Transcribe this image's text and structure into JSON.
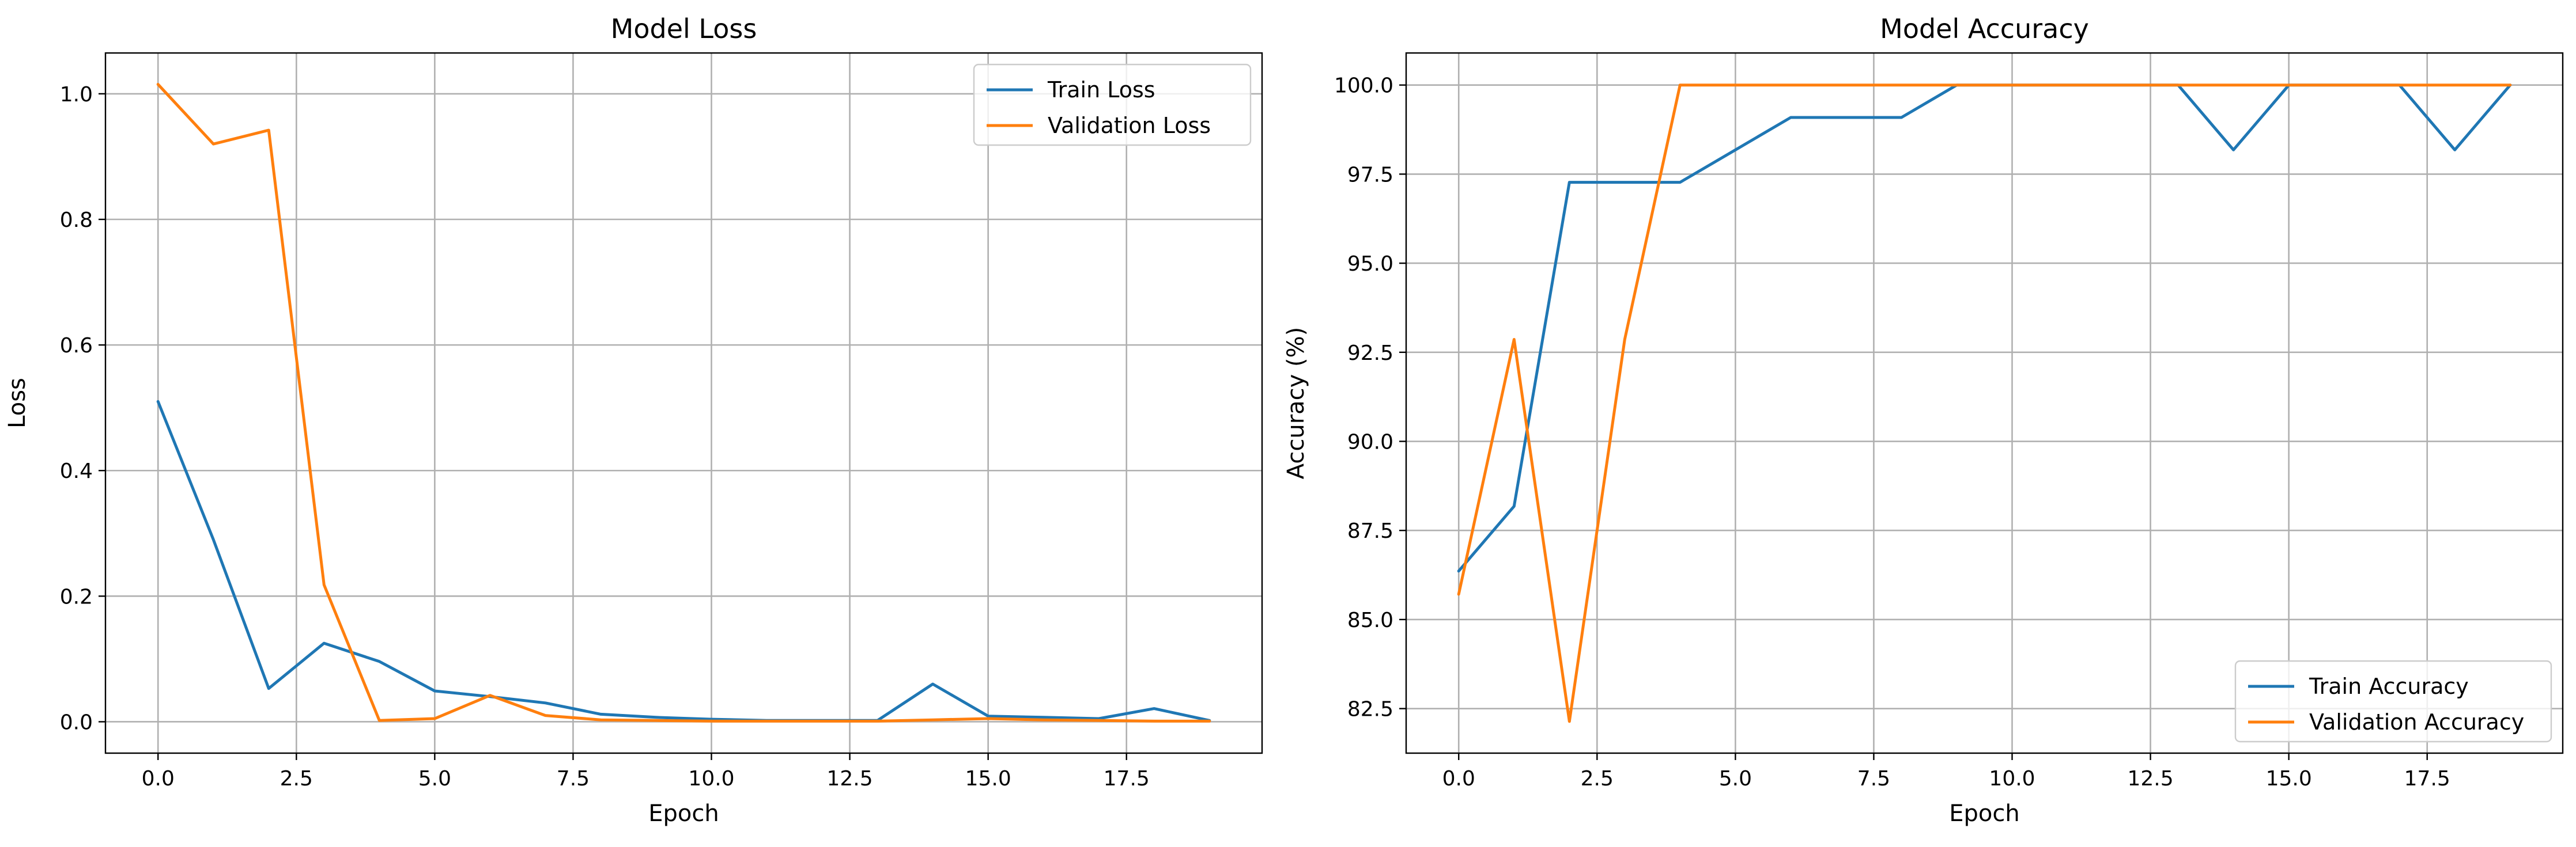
{
  "chart_data": [
    {
      "type": "line",
      "title": "Model Loss",
      "xlabel": "Epoch",
      "ylabel": "Loss",
      "xlim": [
        -0.95,
        19.95
      ],
      "ylim": [
        -0.05,
        1.065
      ],
      "xticks": [
        0.0,
        2.5,
        5.0,
        7.5,
        10.0,
        12.5,
        15.0,
        17.5
      ],
      "xtick_labels": [
        "0.0",
        "2.5",
        "5.0",
        "7.5",
        "10.0",
        "12.5",
        "15.0",
        "17.5"
      ],
      "yticks": [
        0.0,
        0.2,
        0.4,
        0.6,
        0.8,
        1.0
      ],
      "ytick_labels": [
        "0.0",
        "0.2",
        "0.4",
        "0.6",
        "0.8",
        "1.0"
      ],
      "grid": true,
      "legend": "upper-right",
      "x": [
        0,
        1,
        2,
        3,
        4,
        5,
        6,
        7,
        8,
        9,
        10,
        11,
        12,
        13,
        14,
        15,
        16,
        17,
        18,
        19
      ],
      "series": [
        {
          "name": "Train Loss",
          "color": "#1f77b4",
          "values": [
            0.51,
            0.29,
            0.053,
            0.125,
            0.096,
            0.049,
            0.04,
            0.03,
            0.012,
            0.007,
            0.004,
            0.002,
            0.002,
            0.002,
            0.06,
            0.009,
            0.007,
            0.005,
            0.021,
            0.002
          ]
        },
        {
          "name": "Validation Loss",
          "color": "#ff7f0e",
          "values": [
            1.015,
            0.92,
            0.942,
            0.218,
            0.002,
            0.005,
            0.042,
            0.01,
            0.003,
            0.002,
            0.001,
            0.001,
            0.001,
            0.001,
            0.003,
            0.005,
            0.003,
            0.002,
            0.001,
            0.001
          ]
        }
      ]
    },
    {
      "type": "line",
      "title": "Model Accuracy",
      "xlabel": "Epoch",
      "ylabel": "Accuracy (%)",
      "xlim": [
        -0.95,
        19.95
      ],
      "ylim": [
        81.25,
        100.9
      ],
      "xticks": [
        0.0,
        2.5,
        5.0,
        7.5,
        10.0,
        12.5,
        15.0,
        17.5
      ],
      "xtick_labels": [
        "0.0",
        "2.5",
        "5.0",
        "7.5",
        "10.0",
        "12.5",
        "15.0",
        "17.5"
      ],
      "yticks": [
        82.5,
        85.0,
        87.5,
        90.0,
        92.5,
        95.0,
        97.5,
        100.0
      ],
      "ytick_labels": [
        "82.5",
        "85.0",
        "87.5",
        "90.0",
        "92.5",
        "95.0",
        "97.5",
        "100.0"
      ],
      "grid": true,
      "legend": "lower-right",
      "x": [
        0,
        1,
        2,
        3,
        4,
        5,
        6,
        7,
        8,
        9,
        10,
        11,
        12,
        13,
        14,
        15,
        16,
        17,
        18,
        19
      ],
      "series": [
        {
          "name": "Train Accuracy",
          "color": "#1f77b4",
          "values": [
            86.36,
            88.18,
            97.27,
            97.27,
            97.27,
            98.18,
            99.09,
            99.09,
            99.09,
            100.0,
            100.0,
            100.0,
            100.0,
            100.0,
            98.18,
            100.0,
            100.0,
            100.0,
            98.18,
            100.0
          ]
        },
        {
          "name": "Validation Accuracy",
          "color": "#ff7f0e",
          "values": [
            85.71,
            92.86,
            82.14,
            92.86,
            100.0,
            100.0,
            100.0,
            100.0,
            100.0,
            100.0,
            100.0,
            100.0,
            100.0,
            100.0,
            100.0,
            100.0,
            100.0,
            100.0,
            100.0,
            100.0
          ]
        }
      ]
    }
  ]
}
